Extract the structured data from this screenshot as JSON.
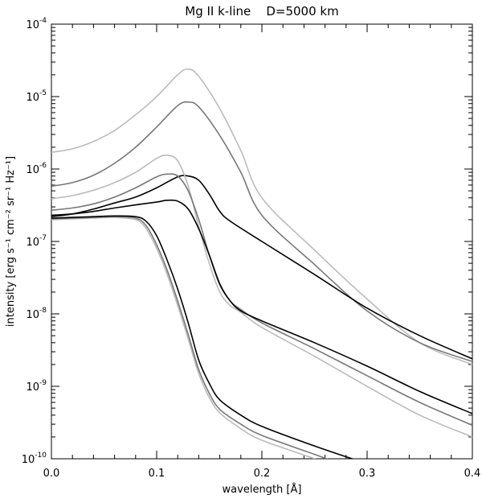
{
  "chart_data": {
    "type": "line",
    "title": "Mg II k-line    D=5000 km",
    "xlabel": "wavelength [Å]",
    "ylabel": "intensity [erg s⁻¹ cm⁻² sr⁻¹ Hz⁻¹]",
    "xlim": [
      0.0,
      0.4
    ],
    "ylim": [
      1e-10,
      0.0001
    ],
    "yscale": "log",
    "grid": false,
    "x_ticks": [
      {
        "value": 0.0,
        "label": "0.0"
      },
      {
        "value": 0.1,
        "label": "0.1"
      },
      {
        "value": 0.2,
        "label": "0.2"
      },
      {
        "value": 0.3,
        "label": "0.3"
      },
      {
        "value": 0.4,
        "label": "0.4"
      }
    ],
    "y_ticks": [
      {
        "value": 1e-10,
        "base": "10",
        "exponent": "-10"
      },
      {
        "value": 1e-09,
        "base": "10",
        "exponent": "-9"
      },
      {
        "value": 1e-08,
        "base": "10",
        "exponent": "-8"
      },
      {
        "value": 1e-07,
        "base": "10",
        "exponent": "-7"
      },
      {
        "value": 1e-06,
        "base": "10",
        "exponent": "-6"
      },
      {
        "value": 1e-05,
        "base": "10",
        "exponent": "-5"
      },
      {
        "value": 0.0001,
        "base": "10",
        "exponent": "-4"
      }
    ],
    "series": [
      {
        "color": "#bbbbbb",
        "x": [
          0,
          0.02,
          0.04,
          0.06,
          0.08,
          0.1,
          0.12,
          0.13,
          0.14,
          0.16,
          0.18,
          0.2,
          0.25,
          0.3,
          0.35,
          0.4
        ],
        "y": [
          1.7e-06,
          1.9e-06,
          2.4e-06,
          3.4e-06,
          5.6e-06,
          1e-05,
          2e-05,
          2.4e-05,
          1.9e-05,
          6.8e-06,
          1.8e-06,
          4e-07,
          7.6e-08,
          1.6e-08,
          4e-09,
          2e-09
        ]
      },
      {
        "color": "#777777",
        "x": [
          0,
          0.02,
          0.04,
          0.06,
          0.08,
          0.1,
          0.12,
          0.13,
          0.14,
          0.16,
          0.18,
          0.2,
          0.25,
          0.3,
          0.35,
          0.4
        ],
        "y": [
          5.8e-07,
          6.5e-07,
          8.2e-07,
          1.2e-06,
          2e-06,
          3.8e-06,
          7.5e-06,
          8.4e-06,
          7.2e-06,
          2.9e-06,
          9e-07,
          2.3e-07,
          4.8e-08,
          1.1e-08,
          4e-09,
          2.2e-09
        ]
      },
      {
        "color": "#000000",
        "x": [
          0,
          0.02,
          0.04,
          0.06,
          0.08,
          0.1,
          0.12,
          0.13,
          0.14,
          0.15,
          0.16,
          0.17,
          0.2,
          0.25,
          0.3,
          0.35,
          0.4
        ],
        "y": [
          2.2e-07,
          2.4e-07,
          2.8e-07,
          3.4e-07,
          4.1e-07,
          5.5e-07,
          7.8e-07,
          8e-07,
          7e-07,
          4.5e-07,
          2.6e-07,
          1.9e-07,
          1e-07,
          3.5e-08,
          1.2e-08,
          5e-09,
          2.4e-09
        ]
      },
      {
        "color": "#bbbbbb",
        "x": [
          0,
          0.02,
          0.04,
          0.06,
          0.08,
          0.1,
          0.11,
          0.12,
          0.13,
          0.14,
          0.15,
          0.16,
          0.17,
          0.18,
          0.2,
          0.25,
          0.3,
          0.35,
          0.4
        ],
        "y": [
          3.9e-07,
          4.3e-07,
          5.1e-07,
          6.5e-07,
          9e-07,
          1.4e-06,
          1.55e-06,
          1.3e-06,
          5.8e-07,
          1.6e-07,
          5e-08,
          2e-08,
          1.3e-08,
          1.05e-08,
          6.5e-09,
          2.6e-09,
          1e-09,
          4e-10,
          2e-10
        ]
      },
      {
        "color": "#777777",
        "x": [
          0,
          0.02,
          0.04,
          0.06,
          0.08,
          0.1,
          0.11,
          0.12,
          0.13,
          0.14,
          0.15,
          0.16,
          0.17,
          0.18,
          0.2,
          0.25,
          0.3,
          0.35,
          0.4
        ],
        "y": [
          2.7e-07,
          2.9e-07,
          3.3e-07,
          4.1e-07,
          5.5e-07,
          7.8e-07,
          8.5e-07,
          8e-07,
          5e-07,
          2e-07,
          6.5e-08,
          2.5e-08,
          1.5e-08,
          1.15e-08,
          7.5e-09,
          3.3e-09,
          1.4e-09,
          6e-10,
          2.9e-10
        ]
      },
      {
        "color": "#000000",
        "x": [
          0,
          0.02,
          0.04,
          0.06,
          0.08,
          0.1,
          0.11,
          0.12,
          0.13,
          0.14,
          0.15,
          0.16,
          0.17,
          0.18,
          0.2,
          0.25,
          0.3,
          0.35,
          0.4
        ],
        "y": [
          2.3e-07,
          2.4e-07,
          2.6e-07,
          2.9e-07,
          3.2e-07,
          3.5e-07,
          3.7e-07,
          3.6e-07,
          2.8e-07,
          1.5e-07,
          6.5e-08,
          2.6e-08,
          1.5e-08,
          1.1e-08,
          8e-09,
          4e-09,
          1.9e-09,
          8.5e-10,
          4.2e-10
        ]
      },
      {
        "color": "#bbbbbb",
        "x": [
          0,
          0.02,
          0.04,
          0.06,
          0.08,
          0.09,
          0.1,
          0.11,
          0.12,
          0.13,
          0.14,
          0.15,
          0.16,
          0.18,
          0.2,
          0.25,
          0.27
        ],
        "y": [
          2e-07,
          2.05e-07,
          2.1e-07,
          2.15e-07,
          2e-07,
          1.5e-07,
          8e-08,
          3.5e-08,
          1.3e-08,
          4.5e-09,
          1.5e-09,
          7e-10,
          4.3e-10,
          2.6e-10,
          1.8e-10,
          1e-10,
          7.5e-11
        ]
      },
      {
        "color": "#777777",
        "x": [
          0,
          0.02,
          0.04,
          0.06,
          0.08,
          0.09,
          0.1,
          0.11,
          0.12,
          0.13,
          0.14,
          0.15,
          0.16,
          0.18,
          0.2,
          0.25,
          0.28
        ],
        "y": [
          2.05e-07,
          2.1e-07,
          2.15e-07,
          2.2e-07,
          2.1e-07,
          1.65e-07,
          9e-08,
          4e-08,
          1.5e-08,
          5.2e-09,
          1.7e-09,
          8e-10,
          4.8e-10,
          3e-10,
          2.1e-10,
          1.15e-10,
          8e-11
        ]
      },
      {
        "color": "#000000",
        "x": [
          0,
          0.02,
          0.04,
          0.06,
          0.08,
          0.09,
          0.1,
          0.11,
          0.12,
          0.13,
          0.14,
          0.15,
          0.16,
          0.18,
          0.2,
          0.25,
          0.3,
          0.31
        ],
        "y": [
          2.1e-07,
          2.15e-07,
          2.2e-07,
          2.25e-07,
          2.2e-07,
          1.9e-07,
          1.2e-07,
          5.5e-08,
          2.2e-08,
          7.5e-09,
          2.3e-09,
          1.1e-09,
          6.5e-10,
          4e-10,
          2.8e-10,
          1.5e-10,
          8.5e-11,
          7.5e-11
        ]
      }
    ]
  }
}
